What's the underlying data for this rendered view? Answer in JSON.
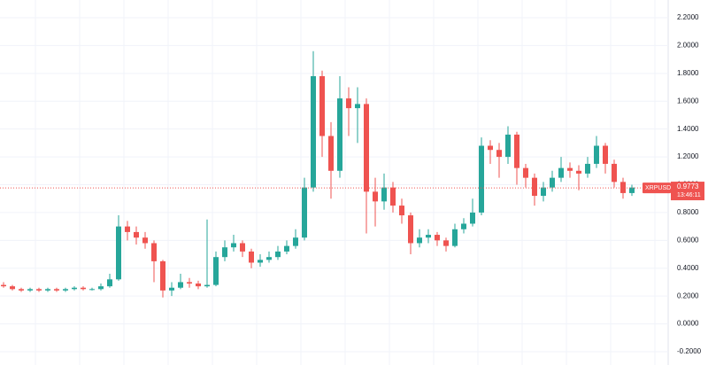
{
  "chart_data": {
    "type": "candlestick",
    "symbol": "XRPUSDT",
    "last_price": 0.9773,
    "countdown": "13:46:11",
    "up_color": "#26a69a",
    "down_color": "#ef5350",
    "grid": true,
    "ylim": [
      -0.2,
      2.2
    ],
    "yticks": [
      {
        "value": -0.2,
        "label": "-0.2000"
      },
      {
        "value": 0,
        "label": "0.0000"
      },
      {
        "value": 0.2,
        "label": "0.2000"
      },
      {
        "value": 0.4,
        "label": "0.4000"
      },
      {
        "value": 0.6,
        "label": "0.6000"
      },
      {
        "value": 0.8,
        "label": "0.8000"
      },
      {
        "value": 1,
        "label": "1.0000"
      },
      {
        "value": 1.2,
        "label": "1.2000"
      },
      {
        "value": 1.4,
        "label": "1.4000"
      },
      {
        "value": 1.6,
        "label": "1.6000"
      },
      {
        "value": 1.8,
        "label": "1.8000"
      },
      {
        "value": 2,
        "label": "2.0000"
      },
      {
        "value": 2.2,
        "label": "2.2000"
      }
    ],
    "open": [
      0.28,
      0.27,
      0.25,
      0.24,
      0.25,
      0.24,
      0.25,
      0.24,
      0.25,
      0.26,
      0.25,
      0.25,
      0.27,
      0.32,
      0.7,
      0.66,
      0.62,
      0.58,
      0.45,
      0.24,
      0.26,
      0.3,
      0.29,
      0.27,
      0.28,
      0.48,
      0.55,
      0.58,
      0.52,
      0.44,
      0.46,
      0.48,
      0.52,
      0.56,
      0.62,
      0.98,
      1.78,
      1.35,
      1.1,
      1.62,
      1.55,
      1.58,
      0.95,
      0.88,
      0.98,
      0.85,
      0.78,
      0.58,
      0.62,
      0.64,
      0.6,
      0.56,
      0.68,
      0.72,
      0.8,
      1.28,
      1.25,
      1.2,
      1.36,
      1.12,
      1.05,
      0.92,
      0.98,
      1.05,
      1.12,
      1.1,
      1.08,
      1.15,
      1.28,
      1.15,
      1.02,
      0.94
    ],
    "high": [
      0.3,
      0.28,
      0.26,
      0.26,
      0.26,
      0.26,
      0.26,
      0.26,
      0.27,
      0.27,
      0.26,
      0.29,
      0.36,
      0.78,
      0.74,
      0.7,
      0.66,
      0.6,
      0.46,
      0.3,
      0.36,
      0.33,
      0.31,
      0.75,
      0.52,
      0.6,
      0.64,
      0.6,
      0.54,
      0.5,
      0.52,
      0.56,
      0.6,
      0.68,
      1.05,
      1.96,
      1.82,
      1.45,
      1.78,
      1.7,
      1.7,
      1.62,
      1.05,
      1.08,
      1.02,
      0.9,
      0.8,
      0.68,
      0.68,
      0.66,
      0.62,
      0.72,
      0.76,
      0.9,
      1.34,
      1.32,
      1.3,
      1.42,
      1.38,
      1.15,
      1.08,
      1.02,
      1.1,
      1.2,
      1.16,
      1.14,
      1.2,
      1.35,
      1.3,
      1.18,
      1.05,
      1.0
    ],
    "low": [
      0.26,
      0.24,
      0.23,
      0.23,
      0.23,
      0.23,
      0.23,
      0.23,
      0.24,
      0.24,
      0.24,
      0.24,
      0.26,
      0.31,
      0.6,
      0.57,
      0.54,
      0.3,
      0.19,
      0.2,
      0.25,
      0.26,
      0.25,
      0.26,
      0.27,
      0.45,
      0.52,
      0.48,
      0.4,
      0.41,
      0.44,
      0.46,
      0.5,
      0.54,
      0.6,
      0.95,
      1.2,
      0.9,
      1.05,
      1.35,
      1.3,
      0.65,
      0.7,
      0.82,
      0.8,
      0.72,
      0.5,
      0.55,
      0.58,
      0.56,
      0.52,
      0.55,
      0.65,
      0.7,
      0.78,
      1.15,
      1.05,
      1.15,
      1.0,
      0.98,
      0.85,
      0.88,
      0.95,
      1.02,
      1.05,
      0.96,
      1.05,
      1.12,
      1.08,
      0.98,
      0.9,
      0.92
    ],
    "close": [
      0.27,
      0.25,
      0.24,
      0.25,
      0.24,
      0.25,
      0.24,
      0.25,
      0.26,
      0.25,
      0.25,
      0.27,
      0.32,
      0.7,
      0.66,
      0.62,
      0.58,
      0.45,
      0.24,
      0.26,
      0.3,
      0.29,
      0.27,
      0.28,
      0.48,
      0.55,
      0.58,
      0.52,
      0.44,
      0.46,
      0.48,
      0.52,
      0.56,
      0.62,
      0.98,
      1.78,
      1.35,
      1.1,
      1.62,
      1.55,
      1.58,
      0.95,
      0.88,
      0.98,
      0.85,
      0.78,
      0.58,
      0.62,
      0.64,
      0.6,
      0.56,
      0.68,
      0.72,
      0.8,
      1.28,
      1.25,
      1.2,
      1.36,
      1.12,
      1.05,
      0.92,
      0.98,
      1.05,
      1.12,
      1.1,
      1.08,
      1.15,
      1.28,
      1.15,
      1.02,
      0.94,
      0.98
    ]
  }
}
